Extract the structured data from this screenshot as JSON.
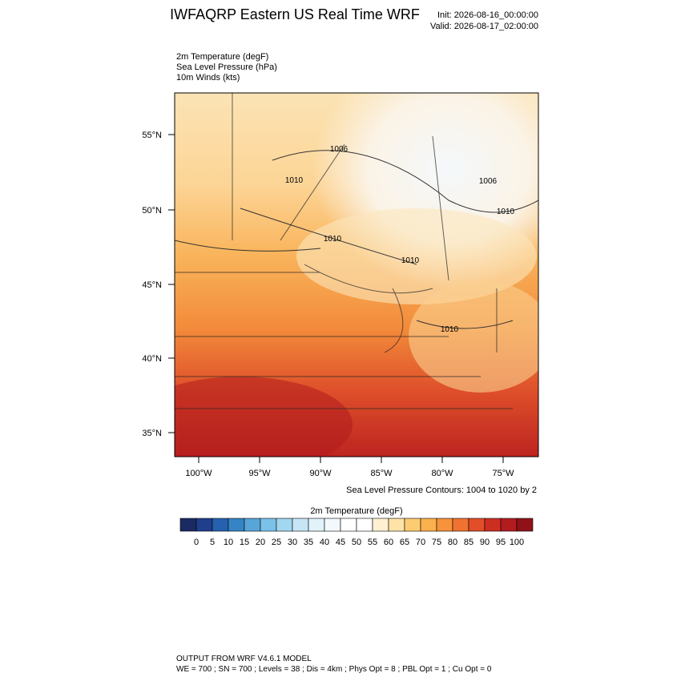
{
  "header": {
    "title": "IWFAQRP Eastern US Real Time WRF",
    "init": "Init: 2026-08-16_00:00:00",
    "valid": "Valid: 2026-08-17_02:00:00"
  },
  "fields": [
    "2m Temperature   (degF)",
    "Sea Level Pressure   (hPa)",
    "10m Winds   (kts)"
  ],
  "map": {
    "lat_labels": [
      "55°N",
      "50°N",
      "45°N",
      "40°N",
      "35°N"
    ],
    "lon_labels": [
      "100°W",
      "95°W",
      "90°W",
      "85°W",
      "80°W",
      "75°W"
    ],
    "contour_labels": [
      "1006",
      "1010",
      "1006",
      "1010",
      "1010",
      "1010",
      "1010"
    ],
    "contour_note": "Sea Level Pressure Contours: 1004 to 1020 by 2"
  },
  "colorbar": {
    "title": "2m Temperature  (degF)",
    "labels": [
      "0",
      "5",
      "10",
      "15",
      "20",
      "25",
      "30",
      "35",
      "40",
      "45",
      "50",
      "55",
      "60",
      "65",
      "70",
      "75",
      "80",
      "85",
      "90",
      "95",
      "100"
    ],
    "colors": [
      "#1b2a63",
      "#1f3e8c",
      "#2561ae",
      "#3585c6",
      "#58a6d9",
      "#7cc1e8",
      "#a3d6f0",
      "#c6e6f6",
      "#e2f2fa",
      "#f2f8fc",
      "#ffffff",
      "#ffffff",
      "#fff0d2",
      "#ffe3a6",
      "#fdcc72",
      "#fbb14d",
      "#f7933b",
      "#f07230",
      "#e24e28",
      "#cc2f22",
      "#b31c1e",
      "#8f1219"
    ]
  },
  "footer": {
    "line1": "OUTPUT FROM WRF V4.6.1 MODEL",
    "line2": "WE = 700 ; SN = 700 ; Levels = 38 ; Dis = 4km ; Phys Opt = 8 ; PBL Opt = 1 ; Cu Opt = 0"
  }
}
